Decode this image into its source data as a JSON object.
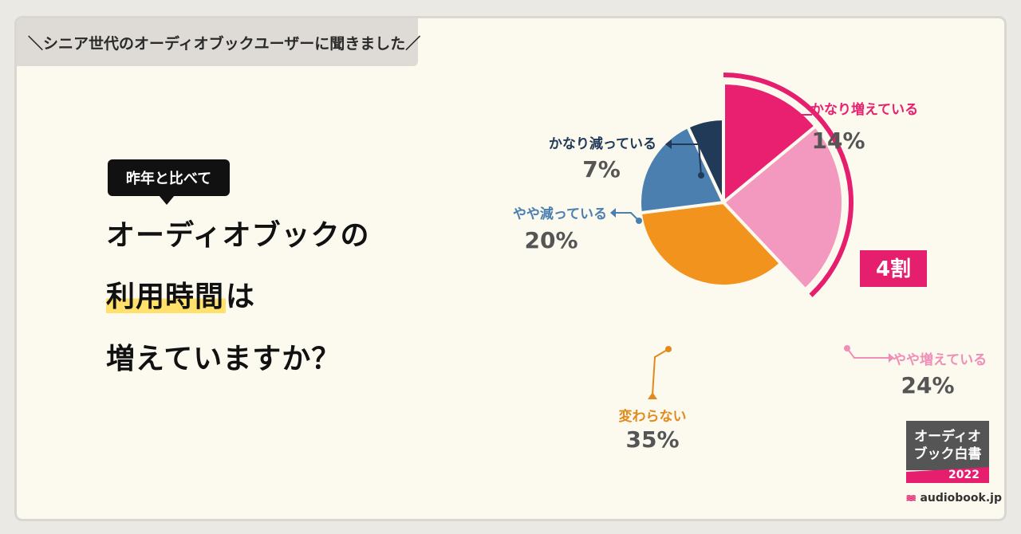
{
  "header_tag": "＼シニア世代のオーディオブックユーザーに聞きました／",
  "bubble": "昨年と比べて",
  "headline": {
    "line1": "オーディオブックの",
    "line2_marked": "利用時間",
    "line2_rest": "は",
    "line3": "増えていますか？"
  },
  "chart_data": {
    "type": "pie",
    "slices": [
      {
        "label": "かなり増えている",
        "value": 14,
        "value_text": "14%",
        "color": "#e8206f"
      },
      {
        "label": "やや増えている",
        "value": 24,
        "value_text": "24%",
        "color": "#f398be"
      },
      {
        "label": "変わらない",
        "value": 35,
        "value_text": "35%",
        "color": "#f2931e"
      },
      {
        "label": "やや減っている",
        "value": 20,
        "value_text": "20%",
        "color": "#4a7fb0"
      },
      {
        "label": "かなり減っている",
        "value": 7,
        "value_text": "7%",
        "color": "#213a57"
      }
    ],
    "annotation": "4割",
    "annotation_color": "#e61e6e"
  },
  "badge": {
    "line1": "オーディオ",
    "line2": "ブック白書",
    "year": "2022"
  },
  "brand": "audiobook.jp"
}
